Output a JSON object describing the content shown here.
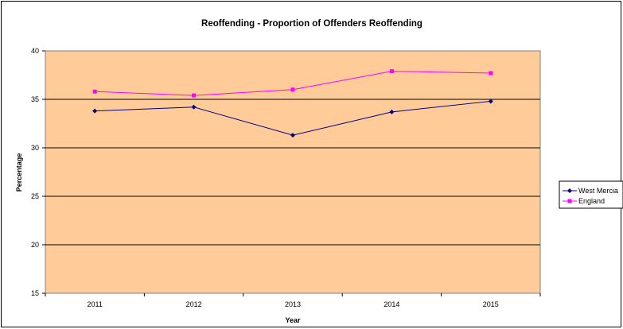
{
  "chart_data": {
    "type": "line",
    "title": "Reoffending - Proportion of Offenders Reoffending",
    "xlabel": "Year",
    "ylabel": "Percentage",
    "categories": [
      "2011",
      "2012",
      "2013",
      "2014",
      "2015"
    ],
    "ylim": [
      15,
      40
    ],
    "yticks": [
      15,
      20,
      25,
      30,
      35,
      40
    ],
    "grid": true,
    "legend_position": "right",
    "plot_background": "#FFCC99",
    "series": [
      {
        "name": "West Mercia",
        "color": "#000080",
        "marker": "diamond",
        "values": [
          33.8,
          34.2,
          31.3,
          33.7,
          34.8
        ]
      },
      {
        "name": "England",
        "color": "#FF00FF",
        "marker": "square",
        "values": [
          35.8,
          35.4,
          36.0,
          37.9,
          37.7
        ]
      }
    ]
  }
}
